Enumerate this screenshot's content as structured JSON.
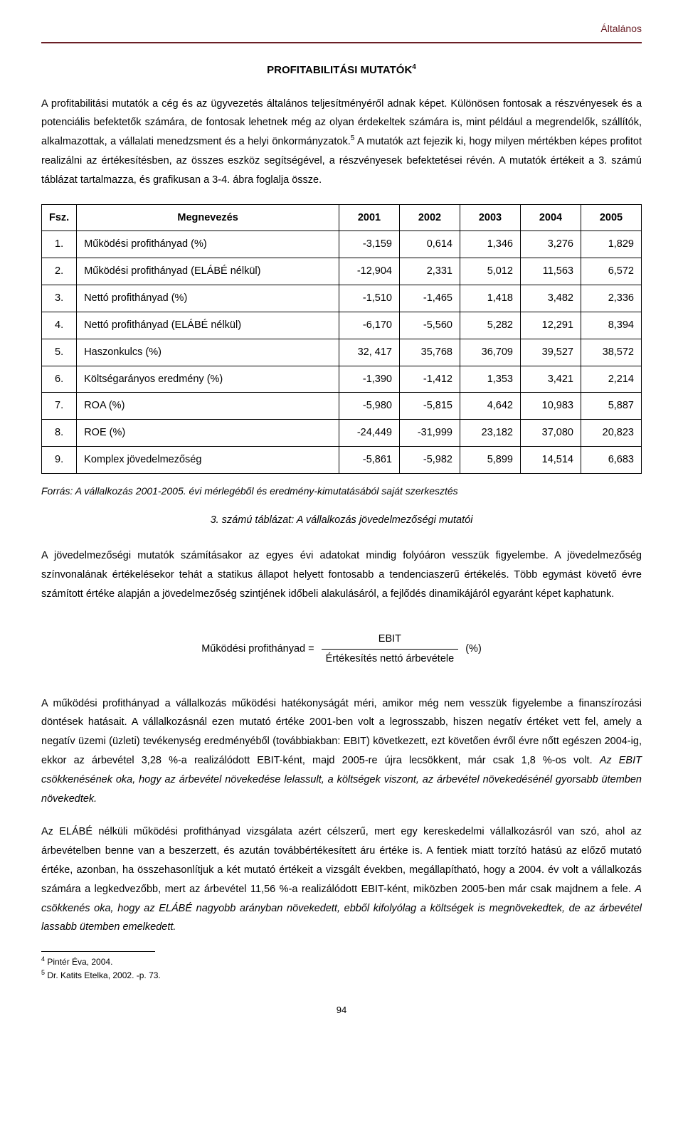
{
  "header": {
    "section": "Általános"
  },
  "title": {
    "text": "PROFITABILITÁSI MUTATÓK",
    "footnote_mark": "4"
  },
  "intro": {
    "p1_a": "A profitabilitási mutatók a cég és az ügyvezetés általános teljesítményéről adnak képet.",
    "p1_b": " Különösen fontosak a részvényesek és a potenciális befektetők számára, de fontosak lehetnek még az olyan érdekeltek számára is, mint például a megrendelők, szállítók, alkalmazottak, a vállalati menedzsment és a helyi önkormányzatok.",
    "p1_mark": "5",
    "p1_c": " A mutatók azt fejezik ki, hogy milyen mértékben képes profitot realizálni az értékesítésben, az összes eszköz segítségével, a részvényesek befektetései révén. A mutatók értékeit a 3. számú táblázat tartalmazza, és grafikusan a 3-4. ábra foglalja össze."
  },
  "table": {
    "columns": [
      "Fsz.",
      "Megnevezés",
      "2001",
      "2002",
      "2003",
      "2004",
      "2005"
    ],
    "rows": [
      [
        "1.",
        "Működési profithányad (%)",
        "-3,159",
        "0,614",
        "1,346",
        "3,276",
        "1,829"
      ],
      [
        "2.",
        "Működési profithányad (ELÁBÉ nélkül)",
        "-12,904",
        "2,331",
        "5,012",
        "11,563",
        "6,572"
      ],
      [
        "3.",
        "Nettó profithányad (%)",
        "-1,510",
        "-1,465",
        "1,418",
        "3,482",
        "2,336"
      ],
      [
        "4.",
        "Nettó profithányad (ELÁBÉ nélkül)",
        "-6,170",
        "-5,560",
        "5,282",
        "12,291",
        "8,394"
      ],
      [
        "5.",
        "Haszonkulcs (%)",
        "32, 417",
        "35,768",
        "36,709",
        "39,527",
        "38,572"
      ],
      [
        "6.",
        "Költségarányos eredmény (%)",
        "-1,390",
        "-1,412",
        "1,353",
        "3,421",
        "2,214"
      ],
      [
        "7.",
        "ROA (%)",
        "-5,980",
        "-5,815",
        "4,642",
        "10,983",
        "5,887"
      ],
      [
        "8.",
        "ROE (%)",
        "-24,449",
        "-31,999",
        "23,182",
        "37,080",
        "20,823"
      ],
      [
        "9.",
        "Komplex jövedelmezőség",
        "-5,861",
        "-5,982",
        "5,899",
        "14,514",
        "6,683"
      ]
    ],
    "source": "Forrás: A vállalkozás 2001-2005. évi mérlegéből és eredmény-kimutatásából saját szerkesztés",
    "caption": "3. számú táblázat: A vállalkozás jövedelmezőségi mutatói"
  },
  "para2": "A jövedelmezőségi mutatók számításakor az egyes évi adatokat mindig folyóáron vesszük figyelembe. A jövedelmezőség színvonalának értékelésekor tehát a statikus állapot helyett fontosabb a tendenciaszerű értékelés. Több egymást követő évre számított értéke alapján a jövedelmezőség szintjének időbeli alakulásáról, a fejlődés dinamikájáról egyaránt képet kaphatunk.",
  "formula": {
    "left": "Működési profithányad =",
    "top": "EBIT",
    "bottom": "Értékesítés  nettó  árbevétele",
    "right": "(%)"
  },
  "para3": {
    "a": "A működési profithányad a vállalkozás működési hatékonyságát méri, amikor még nem vesszük figyelembe a finanszírozási döntések hatásait. A vállalkozásnál ezen mutató értéke 2001-ben volt a legrosszabb, hiszen negatív értéket vett fel, amely a negatív üzemi (üzleti) tevékenység eredményéből (továbbiakban: EBIT) következett, ezt követően évről évre nőtt egészen 2004-ig, ekkor az árbevétel 3,28 %-a realizálódott EBIT-ként, majd 2005-re újra lecsökkent, már csak 1,8 %-os volt. ",
    "b": "Az EBIT csökkenésének oka, hogy az árbevétel növekedése lelassult, a költségek viszont, az árbevétel növekedésénél gyorsabb ütemben növekedtek."
  },
  "para4": {
    "a": "Az ELÁBÉ nélküli működési profithányad vizsgálata azért célszerű, mert egy kereskedelmi vállalkozásról van szó, ahol az árbevételben benne van a beszerzett, és azután továbbértékesített áru értéke is. A fentiek miatt torzító hatású az előző mutató értéke, azonban, ha összehasonlítjuk a két mutató értékeit a vizsgált években, megállapítható, hogy a 2004. év volt a vállalkozás számára a legkedvezőbb, mert az árbevétel 11,56 %-a realizálódott EBIT-ként, miközben 2005-ben már csak majdnem a fele. ",
    "b": "A csökkenés oka, hogy az ELÁBÉ nagyobb arányban növekedett, ebből kifolyólag a költségek is megnövekedtek, de az árbevétel lassabb ütemben emelkedett."
  },
  "footnotes": {
    "f4": {
      "mark": "4",
      "text": " Pintér Éva, 2004."
    },
    "f5": {
      "mark": "5",
      "text": " Dr. Katits Etelka, 2002. -p. 73."
    }
  },
  "page_number": "94"
}
